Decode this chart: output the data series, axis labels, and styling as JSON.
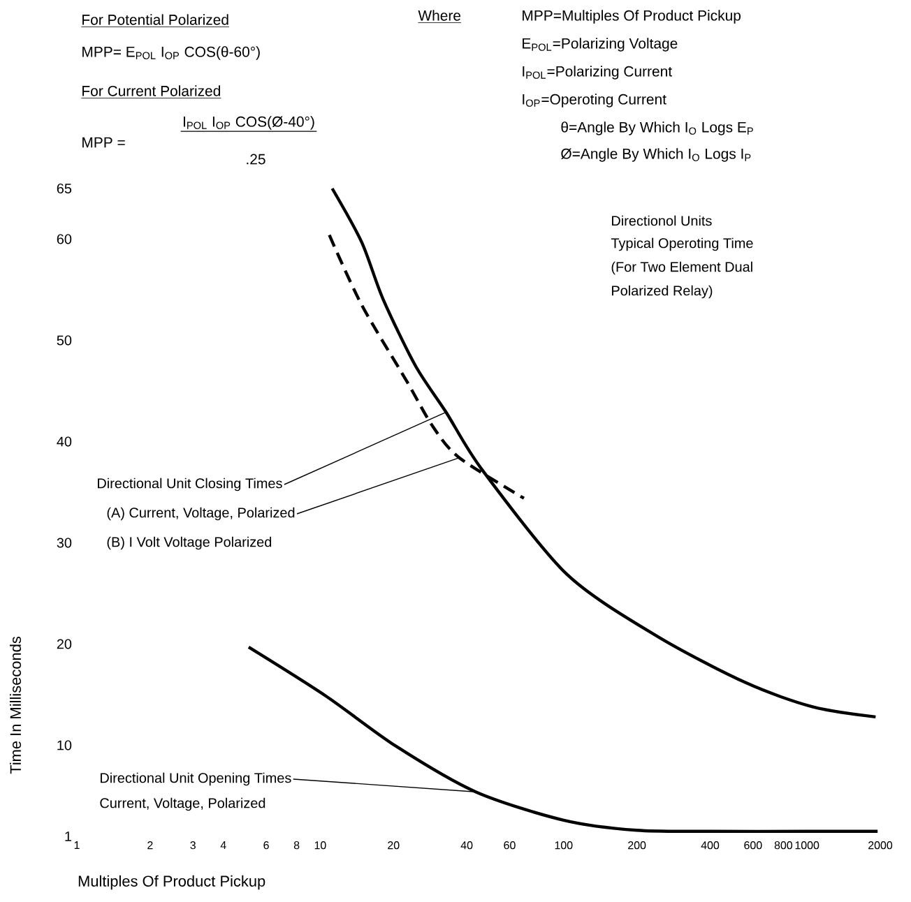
{
  "chart_data": {
    "type": "line",
    "xlabel": "Multiples Of Product Pickup",
    "ylabel": "Time In Milliseconds",
    "log": "x",
    "xlim": [
      1,
      2000
    ],
    "ylim": [
      1,
      65
    ],
    "xticks": [
      1,
      2,
      3,
      4,
      6,
      8,
      10,
      20,
      40,
      60,
      100,
      200,
      400,
      600,
      800,
      1000,
      2000
    ],
    "yticks": [
      1,
      10,
      20,
      30,
      40,
      50,
      60,
      65
    ],
    "series": [
      {
        "color": "#000000",
        "line_style": "solid",
        "x": [
          11.2,
          14.8,
          18.1,
          24.6,
          32.9,
          46.3,
          103,
          241,
          558,
          1054,
          1914
        ],
        "values": [
          65,
          59.7,
          54.1,
          47.5,
          42.9,
          37.2,
          26.9,
          20.8,
          16.2,
          13.8,
          12.8
        ]
      },
      {
        "color": "#000000",
        "line_style": "dashed",
        "x": [
          10.9,
          14.8,
          22.5,
          29.0,
          37.3,
          68.7
        ],
        "values": [
          60.4,
          53.5,
          46.1,
          41.5,
          38.4,
          34.4
        ]
      },
      {
        "color": "#000000",
        "line_style": "solid",
        "x": [
          5.08,
          10.5,
          20.5,
          43.5,
          100,
          200,
          400,
          1000,
          1950
        ],
        "values": [
          19.7,
          14.9,
          9.9,
          5.4,
          2.6,
          1.6,
          1.5,
          1.5,
          1.5
        ]
      }
    ],
    "annotations": [
      "For Potential Polarized",
      "MPP= E$_{POL}$ I$_{OP}$ COS(θ-60°)",
      "For Current Polarized",
      "MPP =",
      "I$_{POL}$ I$_{OP}$ COS(Ø-40°)",
      ".25",
      "Where",
      "MPP=Multiples Of Product Pickup",
      "E$_{POL}$=Polarizing Voltage",
      "I$_{POL}$=Polarizing Current",
      "I$_{OP}$=Operoting Current",
      "θ=Angle By Which I$_{O}$ Logs E$_{P}$",
      "Ø=Angle By Which I$_{O}$ Logs I$_{P}$",
      "Directionol Units",
      "Typical Operoting Time",
      "(For Two Element Dual",
      "Polarized Relay)",
      {
        "text": "Directional Unit Closing Times",
        "x": 32.9,
        "y": 42.9
      },
      {
        "text": "(A) Current, Voltage, Polarized",
        "x": 37.3,
        "y": 38.4
      },
      "(B) I Volt Voltage Polarized",
      {
        "text": "Directional Unit Opening Times",
        "x": 43.5,
        "y": 5.4
      },
      "Current, Voltage, Polarized"
    ]
  }
}
